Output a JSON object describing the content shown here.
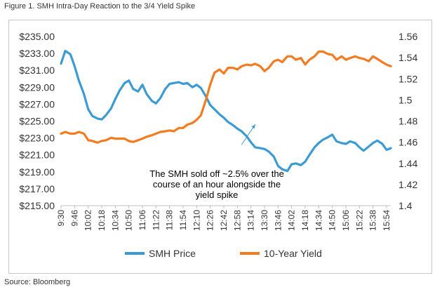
{
  "figure_title": "Figure 1. SMH Intra-Day Reaction to the 3/4 Yield Spike",
  "source": "Source: Bloomberg",
  "chart_data": {
    "type": "line",
    "title": "Figure 1. SMH Intra-Day Reaction to the 3/4 Yield Spike",
    "xlabel": "",
    "ylabel": "",
    "grid": false,
    "legend_position": "bottom",
    "x_ticks": [
      "9:30",
      "9:46",
      "10:02",
      "10:18",
      "10:34",
      "10:50",
      "11:06",
      "11:22",
      "11:38",
      "11:54",
      "12:10",
      "12:26",
      "12:42",
      "12:58",
      "13:14",
      "13:30",
      "13:46",
      "14:02",
      "14:18",
      "14:34",
      "14:50",
      "15:06",
      "15:22",
      "15:38",
      "15:54"
    ],
    "y_left": {
      "ticks": [
        "$235.00",
        "$233.00",
        "$231.00",
        "$229.00",
        "$227.00",
        "$225.00",
        "$223.00",
        "$221.00",
        "$219.00",
        "$217.00",
        "$215.00"
      ],
      "ylim": [
        215,
        235
      ]
    },
    "y_right": {
      "ticks": [
        "1.56",
        "1.54",
        "1.52",
        "1.5",
        "1.48",
        "1.46",
        "1.44",
        "1.42",
        "1.4"
      ],
      "ylim": [
        1.4,
        1.56
      ]
    },
    "series": [
      {
        "name": "SMH Price",
        "axis": "left",
        "color": "#3d9bd3",
        "points": [
          [
            "9:30",
            231.8
          ],
          [
            "9:35",
            233.3
          ],
          [
            "9:41",
            232.9
          ],
          [
            "9:46",
            231.5
          ],
          [
            "9:51",
            229.8
          ],
          [
            "9:57",
            228.2
          ],
          [
            "10:02",
            226.4
          ],
          [
            "10:07",
            225.6
          ],
          [
            "10:13",
            225.3
          ],
          [
            "10:18",
            225.2
          ],
          [
            "10:23",
            225.7
          ],
          [
            "10:29",
            226.5
          ],
          [
            "10:34",
            227.6
          ],
          [
            "10:39",
            228.6
          ],
          [
            "10:45",
            229.5
          ],
          [
            "10:50",
            229.8
          ],
          [
            "10:55",
            228.8
          ],
          [
            "11:01",
            228.5
          ],
          [
            "11:06",
            229.3
          ],
          [
            "11:11",
            228.2
          ],
          [
            "11:17",
            227.4
          ],
          [
            "11:22",
            227.1
          ],
          [
            "11:27",
            227.7
          ],
          [
            "11:33",
            228.8
          ],
          [
            "11:38",
            229.4
          ],
          [
            "11:43",
            229.5
          ],
          [
            "11:49",
            229.6
          ],
          [
            "11:54",
            229.4
          ],
          [
            "11:59",
            229.5
          ],
          [
            "12:05",
            229.0
          ],
          [
            "12:10",
            229.3
          ],
          [
            "12:15",
            228.9
          ],
          [
            "12:21",
            227.9
          ],
          [
            "12:26",
            226.9
          ],
          [
            "12:31",
            226.4
          ],
          [
            "12:37",
            225.8
          ],
          [
            "12:42",
            225.4
          ],
          [
            "12:47",
            224.9
          ],
          [
            "12:53",
            224.5
          ],
          [
            "12:58",
            224.1
          ],
          [
            "13:03",
            223.8
          ],
          [
            "13:09",
            223.2
          ],
          [
            "13:14",
            222.5
          ],
          [
            "13:19",
            221.9
          ],
          [
            "13:25",
            221.8
          ],
          [
            "13:30",
            221.7
          ],
          [
            "13:35",
            221.4
          ],
          [
            "13:41",
            220.8
          ],
          [
            "13:46",
            219.7
          ],
          [
            "13:51",
            219.3
          ],
          [
            "13:57",
            219.1
          ],
          [
            "14:02",
            219.9
          ],
          [
            "14:07",
            220.0
          ],
          [
            "14:13",
            219.8
          ],
          [
            "14:18",
            220.2
          ],
          [
            "14:23",
            221.0
          ],
          [
            "14:29",
            221.9
          ],
          [
            "14:34",
            222.4
          ],
          [
            "14:39",
            222.8
          ],
          [
            "14:45",
            223.1
          ],
          [
            "14:50",
            223.4
          ],
          [
            "14:55",
            222.6
          ],
          [
            "15:01",
            222.4
          ],
          [
            "15:06",
            222.3
          ],
          [
            "15:11",
            222.6
          ],
          [
            "15:17",
            222.4
          ],
          [
            "15:22",
            221.9
          ],
          [
            "15:27",
            221.5
          ],
          [
            "15:33",
            222.0
          ],
          [
            "15:38",
            222.4
          ],
          [
            "15:43",
            222.7
          ],
          [
            "15:49",
            222.3
          ],
          [
            "15:54",
            221.6
          ],
          [
            "15:59",
            221.8
          ]
        ]
      },
      {
        "name": "10-Year Yield",
        "axis": "right",
        "color": "#f47b20",
        "points": [
          [
            "9:30",
            1.4681
          ],
          [
            "9:35",
            1.4697
          ],
          [
            "9:41",
            1.4681
          ],
          [
            "9:46",
            1.4681
          ],
          [
            "9:51",
            1.4697
          ],
          [
            "9:57",
            1.4681
          ],
          [
            "10:02",
            1.4619
          ],
          [
            "10:07",
            1.4612
          ],
          [
            "10:13",
            1.4596
          ],
          [
            "10:18",
            1.4612
          ],
          [
            "10:23",
            1.4619
          ],
          [
            "10:29",
            1.4642
          ],
          [
            "10:34",
            1.4634
          ],
          [
            "10:45",
            1.4634
          ],
          [
            "10:50",
            1.4611
          ],
          [
            "10:55",
            1.4603
          ],
          [
            "11:01",
            1.4619
          ],
          [
            "11:06",
            1.4634
          ],
          [
            "11:11",
            1.4651
          ],
          [
            "11:17",
            1.4666
          ],
          [
            "11:22",
            1.4681
          ],
          [
            "11:27",
            1.4697
          ],
          [
            "11:33",
            1.4704
          ],
          [
            "11:38",
            1.4712
          ],
          [
            "11:43",
            1.4704
          ],
          [
            "11:49",
            1.4735
          ],
          [
            "11:54",
            1.4735
          ],
          [
            "11:59",
            1.4766
          ],
          [
            "12:05",
            1.4782
          ],
          [
            "12:10",
            1.4812
          ],
          [
            "12:15",
            1.4856
          ],
          [
            "12:21",
            1.5003
          ],
          [
            "12:26",
            1.5144
          ],
          [
            "12:31",
            1.5258
          ],
          [
            "12:37",
            1.5288
          ],
          [
            "12:42",
            1.525
          ],
          [
            "12:47",
            1.5304
          ],
          [
            "12:53",
            1.5304
          ],
          [
            "12:58",
            1.5288
          ],
          [
            "13:03",
            1.5319
          ],
          [
            "13:09",
            1.5334
          ],
          [
            "13:14",
            1.5327
          ],
          [
            "13:19",
            1.5342
          ],
          [
            "13:25",
            1.5319
          ],
          [
            "13:30",
            1.5273
          ],
          [
            "13:35",
            1.5304
          ],
          [
            "13:41",
            1.5366
          ],
          [
            "13:46",
            1.538
          ],
          [
            "13:51",
            1.5358
          ],
          [
            "13:57",
            1.5412
          ],
          [
            "14:02",
            1.5412
          ],
          [
            "14:07",
            1.538
          ],
          [
            "14:13",
            1.5397
          ],
          [
            "14:18",
            1.5335
          ],
          [
            "14:23",
            1.538
          ],
          [
            "14:29",
            1.5412
          ],
          [
            "14:34",
            1.5458
          ],
          [
            "14:39",
            1.5458
          ],
          [
            "14:45",
            1.5434
          ],
          [
            "14:50",
            1.5427
          ],
          [
            "14:55",
            1.538
          ],
          [
            "15:01",
            1.5412
          ],
          [
            "15:06",
            1.538
          ],
          [
            "15:11",
            1.5397
          ],
          [
            "15:17",
            1.5412
          ],
          [
            "15:22",
            1.5397
          ],
          [
            "15:27",
            1.5388
          ],
          [
            "15:33",
            1.5366
          ],
          [
            "15:38",
            1.5412
          ],
          [
            "15:43",
            1.5388
          ],
          [
            "15:49",
            1.5358
          ],
          [
            "15:54",
            1.5334
          ],
          [
            "15:59",
            1.5319
          ]
        ]
      }
    ],
    "annotation": {
      "lines": [
        "The SMH sold off ~2.5% over the",
        "course of an hour alongside the",
        "yield spike"
      ],
      "arrow_from": [
        "13:03",
        222.2
      ],
      "arrow_to": [
        "13:19",
        224.6
      ]
    }
  }
}
